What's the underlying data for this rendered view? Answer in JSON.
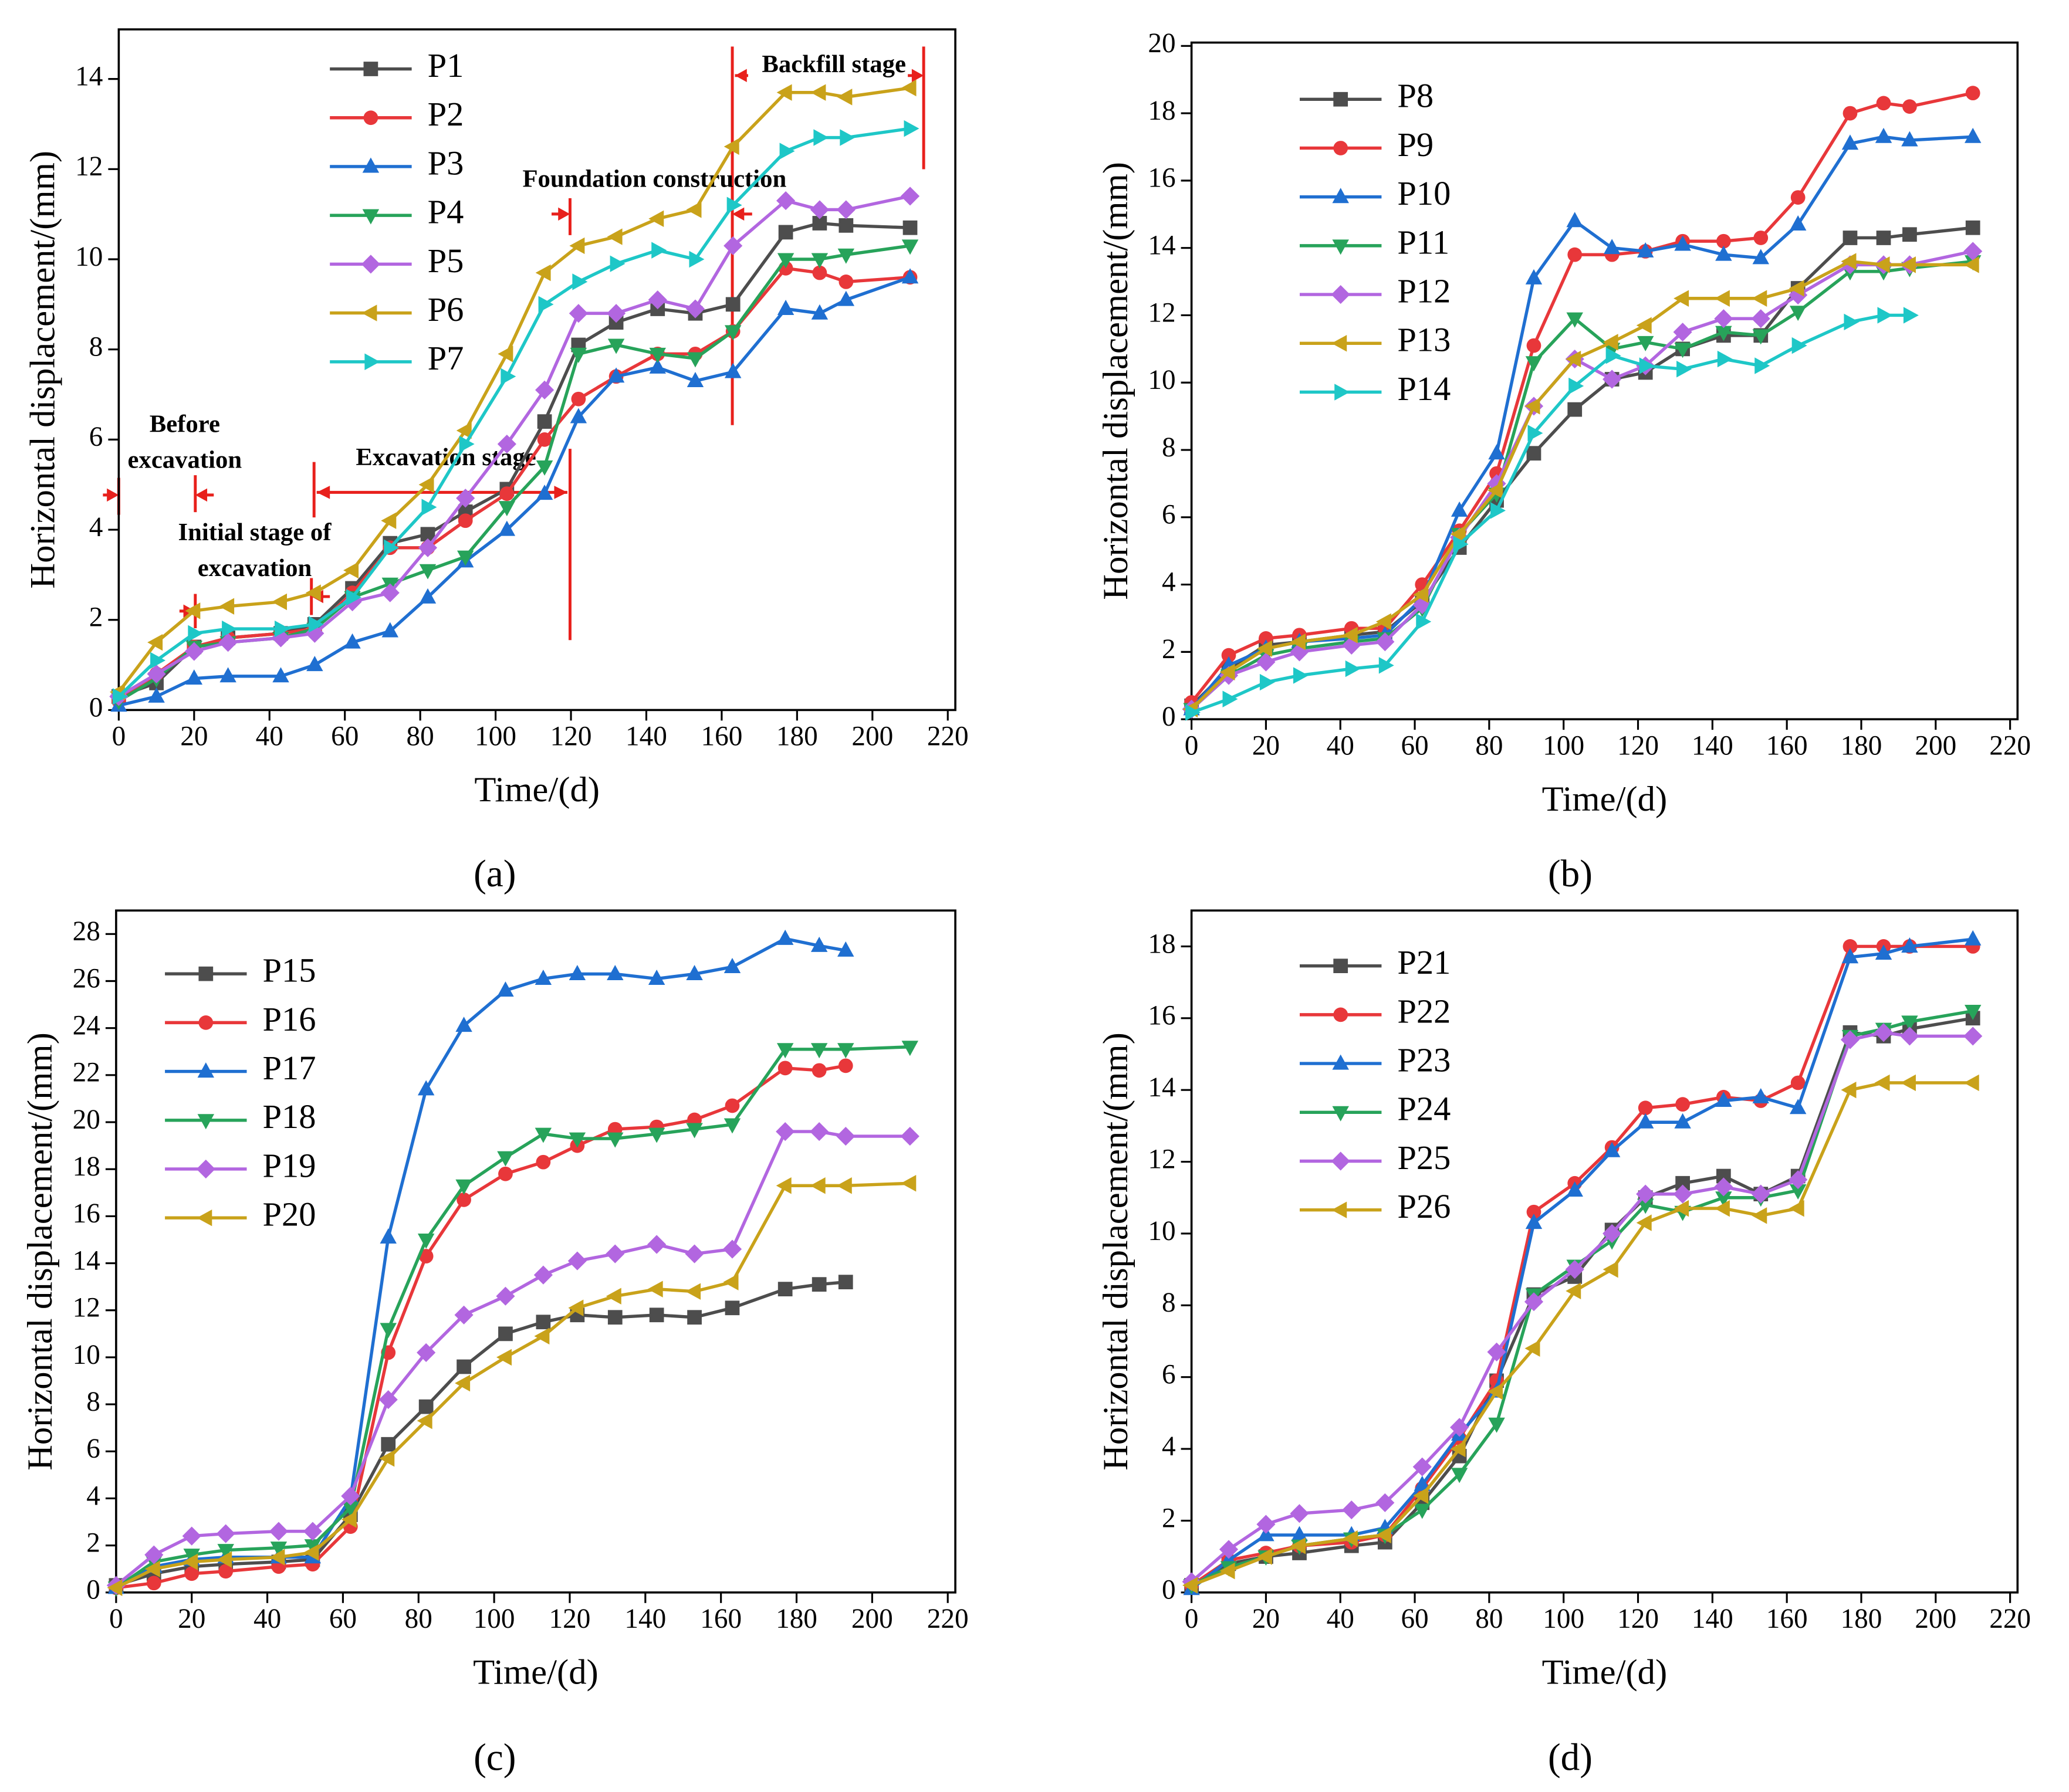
{
  "chart_data": [
    {
      "type": "line",
      "panel_label": "(a)",
      "x_label": "Time/(d)",
      "y_label": "Horizontal displacement/(mm)",
      "x": [
        0,
        10,
        20,
        29,
        43,
        52,
        62,
        72,
        82,
        92,
        103,
        113,
        122,
        132,
        143,
        153,
        163,
        177,
        186,
        193,
        210
      ],
      "xlim": [
        0,
        222
      ],
      "ylim": [
        0,
        15.1
      ],
      "xticks": [
        0,
        20,
        40,
        60,
        80,
        100,
        120,
        140,
        160,
        180,
        200,
        220
      ],
      "yticks": [
        0,
        2,
        4,
        6,
        8,
        10,
        12,
        14
      ],
      "annotations": [
        [
          "Before",
          "excavation"
        ],
        [
          "Initial stage of",
          "excavation"
        ],
        [
          "Excavation stage"
        ],
        [
          "Foundation construction"
        ],
        [
          "Backfill stage"
        ]
      ],
      "series": [
        {
          "name": "P1",
          "color": "#4d4d4d",
          "marker": "square",
          "values": [
            0.3,
            0.6,
            1.4,
            1.6,
            1.7,
            1.9,
            2.7,
            3.7,
            3.9,
            4.4,
            4.9,
            6.4,
            8.1,
            8.6,
            8.9,
            8.8,
            9.0,
            10.6,
            10.8,
            10.75,
            10.7
          ]
        },
        {
          "name": "P2",
          "color": "#e8373a",
          "marker": "circle",
          "values": [
            0.2,
            0.8,
            1.4,
            1.6,
            1.7,
            1.8,
            2.6,
            3.6,
            3.6,
            4.2,
            4.8,
            6.0,
            6.9,
            7.4,
            7.9,
            7.9,
            8.4,
            9.8,
            9.7,
            9.5,
            9.6
          ]
        },
        {
          "name": "P3",
          "color": "#1f6fd1",
          "marker": "triangle-up",
          "values": [
            0.1,
            0.3,
            0.7,
            0.75,
            0.75,
            1.0,
            1.5,
            1.75,
            2.5,
            3.3,
            4.0,
            4.8,
            6.5,
            7.4,
            7.6,
            7.3,
            7.5,
            8.9,
            8.8,
            9.1,
            9.6
          ]
        },
        {
          "name": "P4",
          "color": "#27a35a",
          "marker": "triangle-down",
          "values": [
            0.2,
            0.7,
            1.4,
            1.5,
            1.6,
            1.8,
            2.5,
            2.8,
            3.1,
            3.4,
            4.5,
            5.4,
            7.9,
            8.1,
            7.9,
            7.8,
            8.4,
            10.0,
            10.0,
            10.1,
            10.3
          ]
        },
        {
          "name": "P5",
          "color": "#b266e0",
          "marker": "diamond",
          "values": [
            0.3,
            0.8,
            1.3,
            1.5,
            1.6,
            1.7,
            2.4,
            2.6,
            3.6,
            4.7,
            5.9,
            7.1,
            8.8,
            8.8,
            9.1,
            8.9,
            10.3,
            11.3,
            11.1,
            11.1,
            11.4
          ]
        },
        {
          "name": "P6",
          "color": "#c9a21a",
          "marker": "triangle-left",
          "values": [
            0.4,
            1.5,
            2.2,
            2.3,
            2.4,
            2.6,
            3.1,
            4.2,
            5.0,
            6.2,
            7.9,
            9.7,
            10.3,
            10.5,
            10.9,
            11.1,
            12.5,
            13.7,
            13.7,
            13.6,
            13.8
          ]
        },
        {
          "name": "P7",
          "color": "#1ec7c7",
          "marker": "triangle-right",
          "values": [
            0.3,
            1.1,
            1.7,
            1.8,
            1.8,
            1.9,
            2.5,
            3.6,
            4.5,
            5.9,
            7.4,
            9.0,
            9.5,
            9.9,
            10.2,
            10.0,
            11.2,
            12.4,
            12.7,
            12.7,
            12.9
          ]
        }
      ]
    },
    {
      "type": "line",
      "panel_label": "(b)",
      "x_label": "Time/(d)",
      "y_label": "Horizontal displacement/(mm)",
      "x": [
        0,
        10,
        20,
        29,
        43,
        52,
        62,
        72,
        82,
        92,
        103,
        113,
        122,
        132,
        143,
        153,
        163,
        177,
        186,
        193,
        210
      ],
      "xlim": [
        0,
        222
      ],
      "ylim": [
        0,
        20.1
      ],
      "xticks": [
        0,
        20,
        40,
        60,
        80,
        100,
        120,
        140,
        160,
        180,
        200,
        220
      ],
      "yticks": [
        0,
        2,
        4,
        6,
        8,
        10,
        12,
        14,
        16,
        18,
        20
      ],
      "series": [
        {
          "name": "P8",
          "color": "#4d4d4d",
          "marker": "square",
          "values": [
            0.4,
            1.5,
            2.2,
            2.3,
            2.5,
            2.6,
            3.5,
            5.1,
            6.5,
            7.9,
            9.2,
            10.1,
            10.3,
            11.0,
            11.4,
            11.4,
            12.8,
            14.3,
            14.3,
            14.4,
            14.6
          ]
        },
        {
          "name": "P9",
          "color": "#e8373a",
          "marker": "circle",
          "values": [
            0.5,
            1.9,
            2.4,
            2.5,
            2.7,
            2.7,
            4.0,
            5.6,
            7.3,
            11.1,
            13.8,
            13.8,
            13.9,
            14.2,
            14.2,
            14.3,
            15.5,
            18.0,
            18.3,
            18.2,
            18.6
          ]
        },
        {
          "name": "P10",
          "color": "#1f6fd1",
          "marker": "triangle-up",
          "values": [
            0.3,
            1.6,
            2.1,
            2.3,
            2.4,
            2.5,
            3.6,
            6.2,
            7.9,
            13.1,
            14.8,
            14.0,
            13.9,
            14.1,
            13.8,
            13.7,
            14.7,
            17.1,
            17.3,
            17.2,
            17.3
          ]
        },
        {
          "name": "P11",
          "color": "#27a35a",
          "marker": "triangle-down",
          "values": [
            0.3,
            1.3,
            1.9,
            2.1,
            2.3,
            2.4,
            3.3,
            5.5,
            6.7,
            10.6,
            11.9,
            11.0,
            11.2,
            11.0,
            11.5,
            11.4,
            12.1,
            13.3,
            13.3,
            13.4,
            13.6
          ]
        },
        {
          "name": "P12",
          "color": "#b266e0",
          "marker": "diamond",
          "values": [
            0.3,
            1.3,
            1.7,
            2.0,
            2.2,
            2.3,
            3.4,
            5.4,
            7.0,
            9.3,
            10.7,
            10.1,
            10.5,
            11.5,
            11.9,
            11.9,
            12.6,
            13.5,
            13.5,
            13.5,
            13.9
          ]
        },
        {
          "name": "P13",
          "color": "#c9a21a",
          "marker": "triangle-left",
          "values": [
            0.3,
            1.4,
            2.1,
            2.3,
            2.5,
            2.9,
            3.7,
            5.5,
            6.8,
            9.3,
            10.7,
            11.2,
            11.7,
            12.5,
            12.5,
            12.5,
            12.8,
            13.6,
            13.5,
            13.5,
            13.5
          ]
        },
        {
          "name": "P14",
          "color": "#1ec7c7",
          "marker": "triangle-right",
          "values": [
            0.2,
            0.6,
            1.1,
            1.3,
            1.5,
            1.6,
            2.9,
            5.2,
            6.2,
            8.5,
            9.9,
            10.8,
            10.5,
            10.4,
            10.7,
            10.5,
            11.1,
            11.8,
            12.0,
            12.0,
            null
          ]
        }
      ]
    },
    {
      "type": "line",
      "panel_label": "(c)",
      "x_label": "Time/(d)",
      "y_label": "Horizontal displacement/(mm)",
      "x": [
        0,
        10,
        20,
        29,
        43,
        52,
        62,
        72,
        82,
        92,
        103,
        113,
        122,
        132,
        143,
        153,
        163,
        177,
        186,
        193,
        210
      ],
      "xlim": [
        0,
        222
      ],
      "ylim": [
        0,
        29
      ],
      "xticks": [
        0,
        20,
        40,
        60,
        80,
        100,
        120,
        140,
        160,
        180,
        200,
        220
      ],
      "yticks": [
        0,
        2,
        4,
        6,
        8,
        10,
        12,
        14,
        16,
        18,
        20,
        22,
        24,
        26,
        28
      ],
      "series": [
        {
          "name": "P15",
          "color": "#4d4d4d",
          "marker": "square",
          "values": [
            0.3,
            0.8,
            1.1,
            1.2,
            1.3,
            1.4,
            3.3,
            6.3,
            7.9,
            9.6,
            11.0,
            11.5,
            11.8,
            11.7,
            11.8,
            11.7,
            12.1,
            12.9,
            13.1,
            13.2,
            null
          ]
        },
        {
          "name": "P16",
          "color": "#e8373a",
          "marker": "circle",
          "values": [
            0.2,
            0.4,
            0.8,
            0.9,
            1.1,
            1.2,
            2.8,
            10.2,
            14.3,
            16.7,
            17.8,
            18.3,
            19.0,
            19.7,
            19.8,
            20.1,
            20.7,
            22.3,
            22.2,
            22.4,
            null
          ]
        },
        {
          "name": "P17",
          "color": "#1f6fd1",
          "marker": "triangle-up",
          "values": [
            0.2,
            1.1,
            1.4,
            1.5,
            1.5,
            1.5,
            4.0,
            15.1,
            21.4,
            24.1,
            25.6,
            26.1,
            26.3,
            26.3,
            26.1,
            26.3,
            26.6,
            27.8,
            27.5,
            27.3,
            null
          ]
        },
        {
          "name": "P18",
          "color": "#27a35a",
          "marker": "triangle-down",
          "values": [
            0.2,
            1.3,
            1.6,
            1.8,
            1.9,
            2.0,
            3.6,
            11.2,
            15.0,
            17.3,
            18.5,
            19.5,
            19.3,
            19.3,
            19.5,
            19.7,
            19.9,
            23.1,
            23.1,
            23.1,
            23.2
          ]
        },
        {
          "name": "P19",
          "color": "#b266e0",
          "marker": "diamond",
          "values": [
            0.3,
            1.6,
            2.4,
            2.5,
            2.6,
            2.6,
            4.1,
            8.2,
            10.2,
            11.8,
            12.6,
            13.5,
            14.1,
            14.4,
            14.8,
            14.4,
            14.6,
            19.6,
            19.6,
            19.4,
            19.4
          ]
        },
        {
          "name": "P20",
          "color": "#c9a21a",
          "marker": "triangle-left",
          "values": [
            0.2,
            1.0,
            1.3,
            1.4,
            1.5,
            1.7,
            3.1,
            5.7,
            7.3,
            8.9,
            10.0,
            10.9,
            12.1,
            12.6,
            12.9,
            12.8,
            13.2,
            17.3,
            17.3,
            17.3,
            17.4
          ]
        }
      ]
    },
    {
      "type": "line",
      "panel_label": "(d)",
      "x_label": "Time/(d)",
      "y_label": "Horizontal displacement/(mm)",
      "x": [
        0,
        10,
        20,
        29,
        43,
        52,
        62,
        72,
        82,
        92,
        103,
        113,
        122,
        132,
        143,
        153,
        163,
        177,
        186,
        193,
        210
      ],
      "xlim": [
        0,
        222
      ],
      "ylim": [
        0,
        19
      ],
      "xticks": [
        0,
        20,
        40,
        60,
        80,
        100,
        120,
        140,
        160,
        180,
        200,
        220
      ],
      "yticks": [
        0,
        2,
        4,
        6,
        8,
        10,
        12,
        14,
        16,
        18
      ],
      "series": [
        {
          "name": "P21",
          "color": "#4d4d4d",
          "marker": "square",
          "values": [
            0.2,
            0.8,
            1.0,
            1.1,
            1.3,
            1.4,
            2.5,
            3.8,
            5.9,
            8.3,
            8.8,
            10.1,
            11.0,
            11.4,
            11.6,
            11.1,
            11.6,
            15.6,
            15.5,
            15.7,
            16.0
          ]
        },
        {
          "name": "P22",
          "color": "#e8373a",
          "marker": "circle",
          "values": [
            0.2,
            0.9,
            1.1,
            1.3,
            1.4,
            1.6,
            2.9,
            4.3,
            5.9,
            10.6,
            11.4,
            12.4,
            13.5,
            13.6,
            13.8,
            13.7,
            14.2,
            18.0,
            18.0,
            18.0,
            18.0
          ]
        },
        {
          "name": "P23",
          "color": "#1f6fd1",
          "marker": "triangle-up",
          "values": [
            0.1,
            0.9,
            1.6,
            1.6,
            1.6,
            1.8,
            3.0,
            4.4,
            5.6,
            10.3,
            11.2,
            12.3,
            13.1,
            13.1,
            13.7,
            13.8,
            13.5,
            17.7,
            17.8,
            18.0,
            18.2
          ]
        },
        {
          "name": "P24",
          "color": "#27a35a",
          "marker": "triangle-down",
          "values": [
            0.2,
            0.7,
            1.0,
            1.3,
            1.5,
            1.6,
            2.3,
            3.3,
            4.7,
            8.3,
            9.1,
            9.8,
            10.8,
            10.6,
            11.0,
            11.0,
            11.2,
            15.5,
            15.7,
            15.9,
            16.2
          ]
        },
        {
          "name": "P25",
          "color": "#b266e0",
          "marker": "diamond",
          "values": [
            0.3,
            1.2,
            1.9,
            2.2,
            2.3,
            2.5,
            3.5,
            4.6,
            6.7,
            8.1,
            9.0,
            10.0,
            11.1,
            11.1,
            11.3,
            11.1,
            11.5,
            15.4,
            15.6,
            15.5,
            15.5
          ]
        },
        {
          "name": "P26",
          "color": "#c9a21a",
          "marker": "triangle-left",
          "values": [
            0.2,
            0.6,
            1.0,
            1.3,
            1.5,
            1.6,
            2.7,
            4.0,
            5.6,
            6.8,
            8.4,
            9.0,
            10.3,
            10.7,
            10.7,
            10.5,
            10.7,
            14.0,
            14.2,
            14.2,
            14.2
          ]
        }
      ]
    }
  ]
}
